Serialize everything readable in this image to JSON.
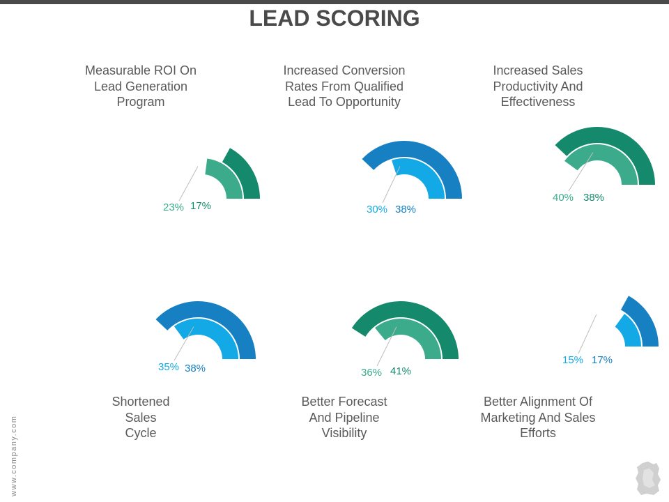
{
  "header": {
    "title": "LEAD SCORING"
  },
  "labels": [
    [
      "Measurable ROI On",
      "Lead Generation",
      "Program"
    ],
    [
      "Increased Conversion",
      "Rates From Qualified",
      "Lead To Opportunity"
    ],
    [
      "Increased Sales",
      "Productivity And",
      "Effectiveness"
    ],
    [
      "Shortened",
      "Sales",
      "Cycle"
    ],
    [
      "Better Forecast",
      "And Pipeline",
      "Visibility"
    ],
    [
      "Better Alignment Of",
      "Marketing And Sales",
      "Efforts"
    ]
  ],
  "gauges": [
    {
      "inner_value": "23%",
      "outer_value": "17%",
      "inner_pct": 23,
      "outer_pct": 17,
      "inner_color": "#3bab8c",
      "outer_color": "#14896b"
    },
    {
      "inner_value": "30%",
      "outer_value": "38%",
      "inner_pct": 30,
      "outer_pct": 38,
      "inner_color": "#12a9e6",
      "outer_color": "#1680c2"
    },
    {
      "inner_value": "40%",
      "outer_value": "38%",
      "inner_pct": 40,
      "outer_pct": 38,
      "inner_color": "#3bab8c",
      "outer_color": "#14896b"
    },
    {
      "inner_value": "35%",
      "outer_value": "38%",
      "inner_pct": 35,
      "outer_pct": 38,
      "inner_color": "#12a9e6",
      "outer_color": "#1680c2"
    },
    {
      "inner_value": "36%",
      "outer_value": "41%",
      "inner_pct": 36,
      "outer_pct": 41,
      "inner_color": "#3bab8c",
      "outer_color": "#14896b"
    },
    {
      "inner_value": "15%",
      "outer_value": "17%",
      "inner_pct": 15,
      "outer_pct": 17,
      "inner_color": "#12a9e6",
      "outer_color": "#1680c2"
    }
  ],
  "footer": {
    "website": "www.company.com",
    "logo_icon": "company-logo-icon"
  }
}
